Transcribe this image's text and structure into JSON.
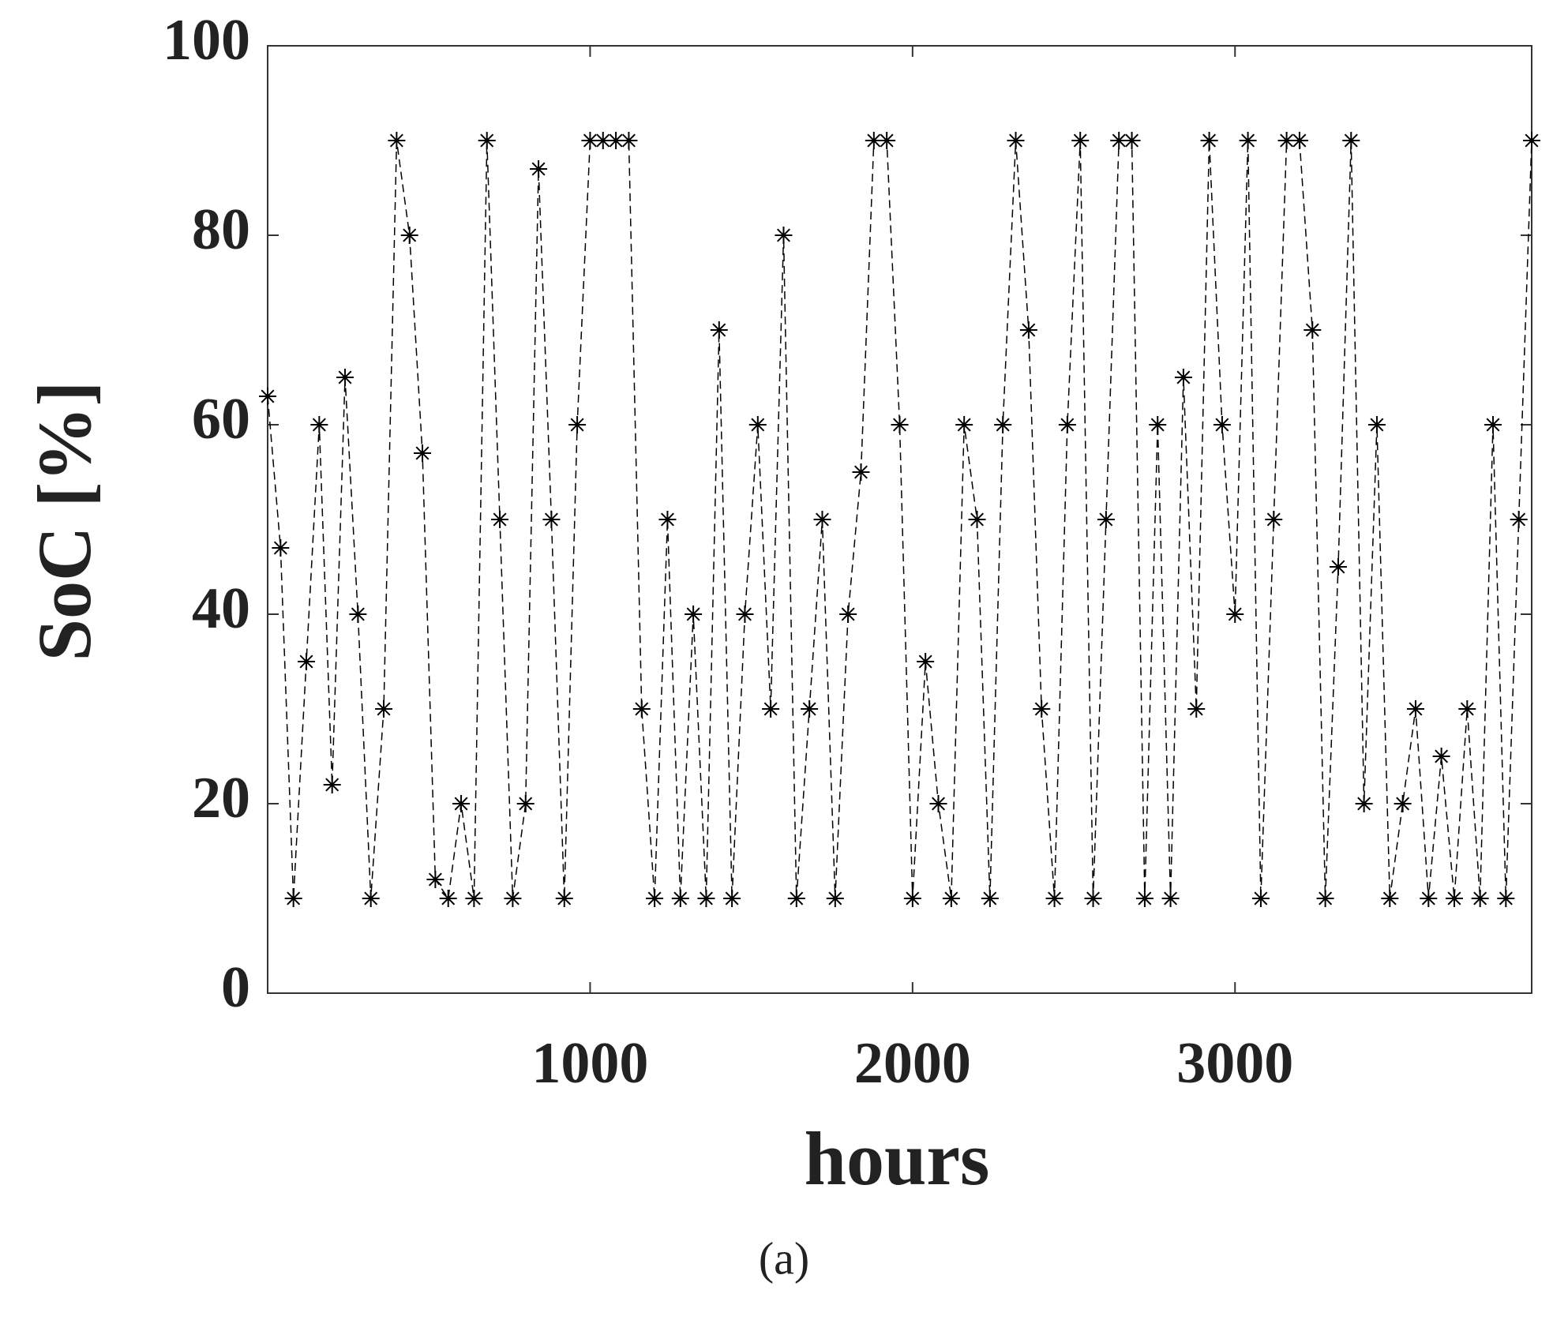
{
  "chart_data": {
    "type": "line",
    "marker": "asterisk",
    "dashed": true,
    "color": "#000000",
    "xlabel": "hours",
    "ylabel": "SoC [%]",
    "caption": "(a)",
    "xlim": [
      0,
      3920
    ],
    "ylim": [
      0,
      100
    ],
    "xticks": [
      1000,
      2000,
      3000
    ],
    "yticks": [
      0,
      20,
      40,
      60,
      80,
      100
    ],
    "x": [
      0,
      40,
      80,
      120,
      160,
      200,
      240,
      280,
      320,
      360,
      400,
      440,
      480,
      520,
      560,
      600,
      640,
      680,
      720,
      760,
      800,
      840,
      880,
      920,
      960,
      1000,
      1040,
      1080,
      1120,
      1160,
      1200,
      1240,
      1280,
      1320,
      1360,
      1400,
      1440,
      1480,
      1520,
      1560,
      1600,
      1640,
      1680,
      1720,
      1760,
      1800,
      1840,
      1880,
      1920,
      1960,
      2000,
      2040,
      2080,
      2120,
      2160,
      2200,
      2240,
      2280,
      2320,
      2360,
      2400,
      2440,
      2480,
      2520,
      2560,
      2600,
      2640,
      2680,
      2720,
      2760,
      2800,
      2840,
      2880,
      2920,
      2960,
      3000,
      3040,
      3080,
      3120,
      3160,
      3200,
      3240,
      3280,
      3320,
      3360,
      3400,
      3440,
      3480,
      3520,
      3560,
      3600,
      3640,
      3680,
      3720,
      3760,
      3800,
      3840,
      3880,
      3920
    ],
    "values": [
      63,
      47,
      10,
      35,
      60,
      22,
      65,
      40,
      10,
      30,
      90,
      80,
      57,
      12,
      10,
      20,
      10,
      90,
      50,
      10,
      20,
      87,
      50,
      10,
      60,
      90,
      90,
      90,
      90,
      30,
      10,
      50,
      10,
      40,
      10,
      70,
      10,
      40,
      60,
      30,
      80,
      10,
      30,
      50,
      10,
      40,
      55,
      90,
      90,
      60,
      10,
      35,
      20,
      10,
      60,
      50,
      10,
      60,
      90,
      70,
      30,
      10,
      60,
      90,
      10,
      50,
      90,
      90,
      10,
      60,
      10,
      65,
      30,
      90,
      60,
      40,
      90,
      10,
      50,
      90,
      90,
      70,
      10,
      45,
      90,
      20,
      60,
      10,
      20,
      30,
      10,
      25,
      10,
      30,
      10,
      60,
      10,
      50,
      90
    ]
  }
}
